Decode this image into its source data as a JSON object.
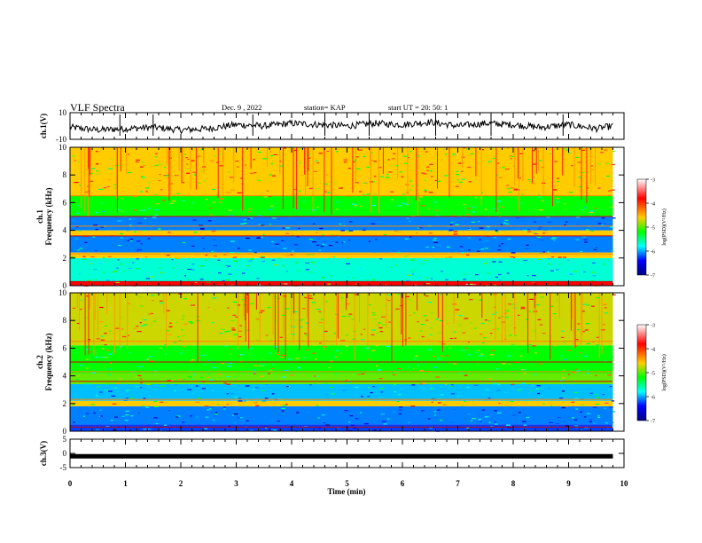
{
  "header": {
    "title": "VLF Spectra",
    "date": "Dec. 9 , 2022",
    "station": "station= KAP",
    "start_time": "start UT = 20: 50: 1"
  },
  "colorbar": {
    "label": "log(PSD)(V²/Hz)",
    "ticks": [
      "-3",
      "-4",
      "-5",
      "-6",
      "-7"
    ],
    "colors": [
      "#ffffff",
      "#ff0000",
      "#ffcc00",
      "#00ff00",
      "#00ffff",
      "#0000ff",
      "#000080"
    ]
  },
  "chart_data": [
    {
      "type": "line",
      "ylabel": "ch.1(V)",
      "ylim": [
        -10,
        10
      ],
      "yticks": [
        "10",
        "-10"
      ],
      "xlim": [
        0,
        10
      ],
      "x": [
        0,
        0.5,
        1,
        1.5,
        2,
        2.5,
        3,
        3.5,
        4,
        4.5,
        5,
        5.5,
        6,
        6.5,
        7,
        7.5,
        8,
        8.5,
        9,
        9.5,
        9.8
      ],
      "y": [
        -1,
        -3,
        -2,
        -1,
        -3,
        -2,
        1,
        0,
        2,
        1,
        0,
        2,
        1,
        3,
        0,
        2,
        1,
        -1,
        1,
        -2,
        0
      ]
    },
    {
      "type": "heatmap",
      "ylabel": "ch.1\nFrequency (kHz)",
      "ylim": [
        0,
        10
      ],
      "yticks": [
        "0",
        "2",
        "4",
        "6",
        "8",
        "10"
      ],
      "xlim": [
        0,
        10
      ],
      "z_units": "log(PSD)(V²/Hz)",
      "zlim": [
        -7,
        -3
      ],
      "bands_khz": [
        {
          "from": 0,
          "to": 0.3,
          "level": -4
        },
        {
          "from": 0.3,
          "to": 2.0,
          "level": -5.5
        },
        {
          "from": 2.0,
          "to": 2.4,
          "level": -4.5
        },
        {
          "from": 2.4,
          "to": 3.6,
          "level": -6
        },
        {
          "from": 3.6,
          "to": 4.0,
          "level": -4.5
        },
        {
          "from": 4.0,
          "to": 5.0,
          "level": -6
        },
        {
          "from": 5.0,
          "to": 6.5,
          "level": -5
        },
        {
          "from": 6.5,
          "to": 10,
          "level": -4.5
        }
      ]
    },
    {
      "type": "heatmap",
      "ylabel": "ch.2\nFrequency (kHz)",
      "ylim": [
        0,
        10
      ],
      "yticks": [
        "0",
        "2",
        "4",
        "6",
        "8",
        "10"
      ],
      "xlim": [
        0,
        10
      ],
      "z_units": "log(PSD)(V²/Hz)",
      "zlim": [
        -7,
        -3
      ],
      "bands_khz": [
        {
          "from": 0,
          "to": 0.5,
          "level": -6.2
        },
        {
          "from": 0.5,
          "to": 1.8,
          "level": -6
        },
        {
          "from": 1.8,
          "to": 2.2,
          "level": -4.5
        },
        {
          "from": 2.2,
          "to": 3.4,
          "level": -5.8
        },
        {
          "from": 3.4,
          "to": 4.2,
          "level": -4.8
        },
        {
          "from": 4.2,
          "to": 6.2,
          "level": -5
        },
        {
          "from": 6.2,
          "to": 10,
          "level": -4.6
        }
      ]
    },
    {
      "type": "line",
      "ylabel": "ch.3(V)",
      "ylim": [
        -5,
        5
      ],
      "yticks": [
        "5",
        "0",
        "-5"
      ],
      "xlim": [
        0,
        10
      ],
      "xlabel": "Time (min)",
      "xticks": [
        "0",
        "1",
        "2",
        "3",
        "4",
        "5",
        "6",
        "7",
        "8",
        "9",
        "10"
      ],
      "x": [
        0,
        9.8
      ],
      "y": [
        -1,
        -1
      ]
    }
  ]
}
